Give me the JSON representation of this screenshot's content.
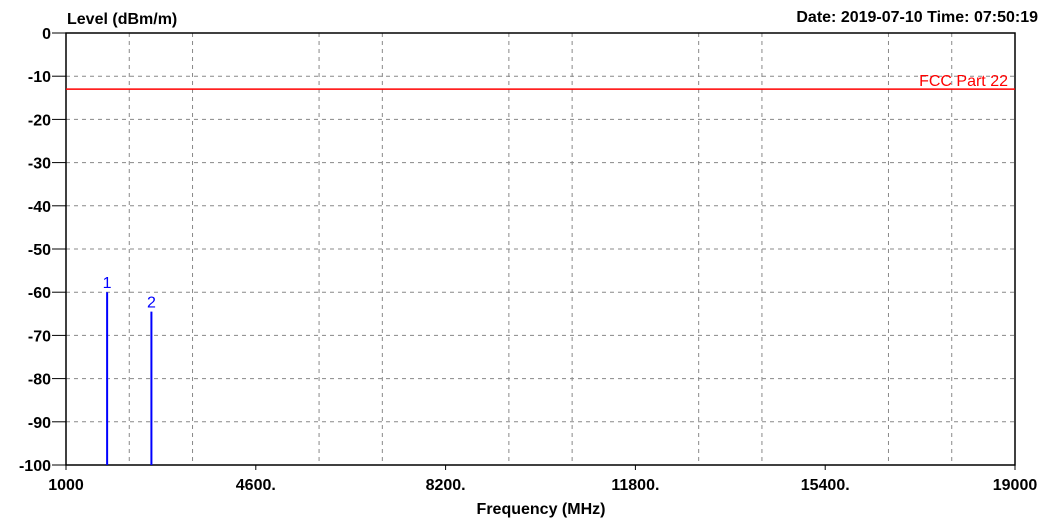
{
  "chart_data": {
    "type": "line",
    "ylabel": "Level (dBm/m)",
    "xlabel": "Frequency (MHz)",
    "header": "Date: 2019-07-10  Time: 07:50:19",
    "xlim": [
      1000,
      19000
    ],
    "ylim": [
      -100,
      0
    ],
    "x_ticks": [
      1000,
      4600,
      8200,
      11800,
      15400,
      19000
    ],
    "x_tick_labels": [
      "1000",
      "4600.",
      "8200.",
      "11800.",
      "15400.",
      "19000"
    ],
    "y_ticks": [
      0,
      -10,
      -20,
      -30,
      -40,
      -50,
      -60,
      -70,
      -80,
      -90,
      -100
    ],
    "y_tick_labels": [
      "0",
      "-10",
      "-20",
      "-30",
      "-40",
      "-50",
      "-60",
      "-70",
      "-80",
      "-90",
      "-100"
    ],
    "grid": true,
    "limit_line": {
      "label": "FCC Part 22",
      "value": -13,
      "color": "#ff0000"
    },
    "markers": [
      {
        "label": "1",
        "x": 1780,
        "y": -60
      },
      {
        "label": "2",
        "x": 2620,
        "y": -64.5
      }
    ],
    "marker_color": "#0000ff"
  }
}
